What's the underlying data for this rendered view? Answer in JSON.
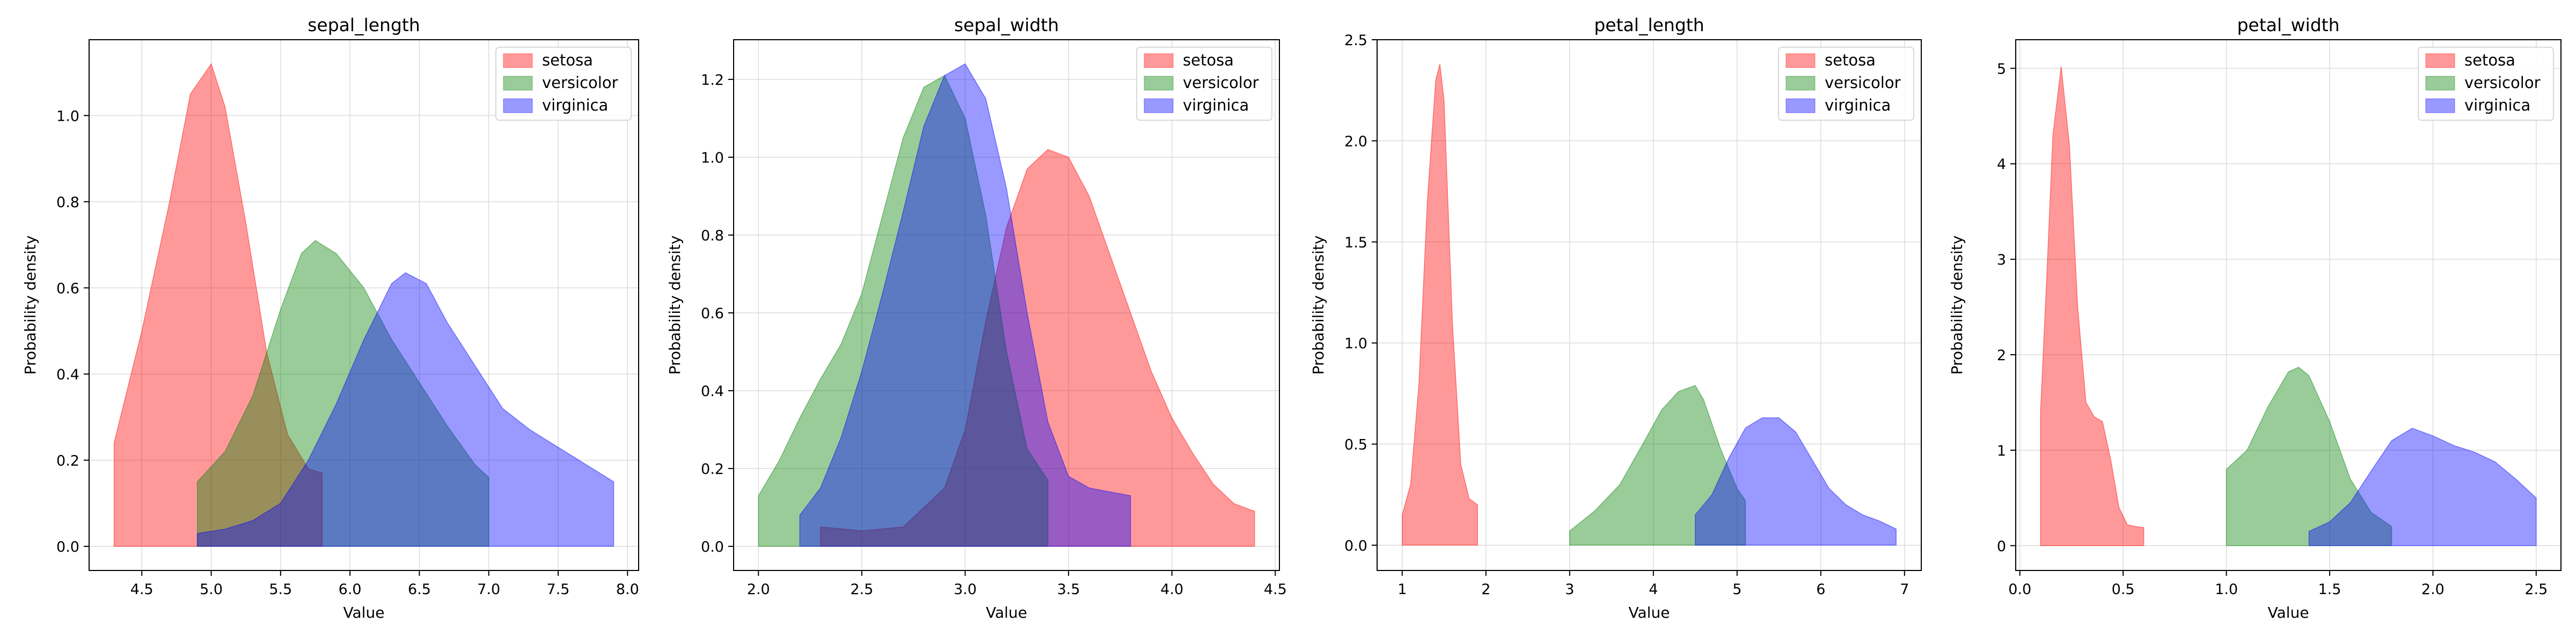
{
  "chart_data": [
    {
      "type": "area",
      "title": "sepal_length",
      "xlabel": "Value",
      "ylabel": "Probability density",
      "xlim": [
        4.12,
        8.08
      ],
      "ylim": [
        -0.056,
        1.176
      ],
      "xticks": [
        "4.5",
        "5.0",
        "5.5",
        "6.0",
        "6.5",
        "7.0",
        "7.5",
        "8.0"
      ],
      "yticks": [
        "0.0",
        "0.2",
        "0.4",
        "0.6",
        "0.8",
        "1.0"
      ],
      "grid": true,
      "legend": "upper-right",
      "series": [
        {
          "name": "setosa",
          "color": "#ff0000",
          "x": [
            4.3,
            4.5,
            4.7,
            4.85,
            5.0,
            5.1,
            5.25,
            5.4,
            5.55,
            5.7,
            5.8
          ],
          "y": [
            0.24,
            0.5,
            0.8,
            1.05,
            1.12,
            1.02,
            0.75,
            0.45,
            0.26,
            0.18,
            0.17
          ]
        },
        {
          "name": "versicolor",
          "color": "#008000",
          "x": [
            4.9,
            5.1,
            5.3,
            5.5,
            5.65,
            5.75,
            5.9,
            6.1,
            6.3,
            6.5,
            6.7,
            6.9,
            7.0
          ],
          "y": [
            0.15,
            0.22,
            0.35,
            0.55,
            0.68,
            0.71,
            0.68,
            0.6,
            0.48,
            0.38,
            0.28,
            0.19,
            0.16
          ]
        },
        {
          "name": "virginica",
          "color": "#0000ff",
          "x": [
            4.9,
            5.1,
            5.3,
            5.5,
            5.7,
            5.9,
            6.1,
            6.3,
            6.4,
            6.55,
            6.7,
            6.9,
            7.1,
            7.3,
            7.5,
            7.7,
            7.9
          ],
          "y": [
            0.03,
            0.04,
            0.06,
            0.1,
            0.2,
            0.33,
            0.48,
            0.61,
            0.635,
            0.61,
            0.52,
            0.42,
            0.32,
            0.27,
            0.23,
            0.19,
            0.15
          ]
        }
      ]
    },
    {
      "type": "area",
      "title": "sepal_width",
      "xlabel": "Value",
      "ylabel": "Probability density",
      "xlim": [
        1.88,
        4.52
      ],
      "ylim": [
        -0.062,
        1.302
      ],
      "xticks": [
        "2.0",
        "2.5",
        "3.0",
        "3.5",
        "4.0",
        "4.5"
      ],
      "yticks": [
        "0.0",
        "0.2",
        "0.4",
        "0.6",
        "0.8",
        "1.0",
        "1.2"
      ],
      "grid": true,
      "legend": "upper-right",
      "series": [
        {
          "name": "setosa",
          "color": "#ff0000",
          "x": [
            2.3,
            2.5,
            2.7,
            2.9,
            3.0,
            3.1,
            3.2,
            3.3,
            3.4,
            3.5,
            3.6,
            3.7,
            3.8,
            3.9,
            4.0,
            4.1,
            4.2,
            4.3,
            4.4
          ],
          "y": [
            0.05,
            0.04,
            0.05,
            0.15,
            0.3,
            0.58,
            0.82,
            0.97,
            1.02,
            1.0,
            0.9,
            0.75,
            0.6,
            0.45,
            0.33,
            0.24,
            0.16,
            0.11,
            0.09
          ]
        },
        {
          "name": "versicolor",
          "color": "#008000",
          "x": [
            2.0,
            2.1,
            2.2,
            2.3,
            2.4,
            2.5,
            2.6,
            2.7,
            2.8,
            2.9,
            3.0,
            3.1,
            3.2,
            3.3,
            3.4
          ],
          "y": [
            0.13,
            0.22,
            0.33,
            0.43,
            0.52,
            0.65,
            0.85,
            1.05,
            1.18,
            1.21,
            1.1,
            0.85,
            0.5,
            0.25,
            0.17
          ]
        },
        {
          "name": "virginica",
          "color": "#0000ff",
          "x": [
            2.2,
            2.3,
            2.4,
            2.5,
            2.6,
            2.7,
            2.8,
            2.9,
            3.0,
            3.1,
            3.2,
            3.3,
            3.4,
            3.5,
            3.6,
            3.7,
            3.8
          ],
          "y": [
            0.08,
            0.15,
            0.28,
            0.45,
            0.65,
            0.86,
            1.08,
            1.21,
            1.24,
            1.15,
            0.92,
            0.6,
            0.32,
            0.18,
            0.15,
            0.14,
            0.13
          ]
        }
      ]
    },
    {
      "type": "area",
      "title": "petal_length",
      "xlabel": "Value",
      "ylabel": "Probability density",
      "xlim": [
        0.7,
        7.2
      ],
      "ylim": [
        -0.125,
        2.5
      ],
      "xticks": [
        "1",
        "2",
        "3",
        "4",
        "5",
        "6",
        "7"
      ],
      "yticks": [
        "0.0",
        "0.5",
        "1.0",
        "1.5",
        "2.0",
        "2.5"
      ],
      "grid": true,
      "legend": "upper-right",
      "series": [
        {
          "name": "setosa",
          "color": "#ff0000",
          "x": [
            1.0,
            1.1,
            1.2,
            1.3,
            1.4,
            1.45,
            1.5,
            1.6,
            1.7,
            1.8,
            1.9
          ],
          "y": [
            0.15,
            0.3,
            0.8,
            1.7,
            2.3,
            2.38,
            2.2,
            1.1,
            0.4,
            0.23,
            0.2
          ]
        },
        {
          "name": "versicolor",
          "color": "#008000",
          "x": [
            3.0,
            3.3,
            3.6,
            3.9,
            4.1,
            4.3,
            4.5,
            4.6,
            4.8,
            5.0,
            5.1
          ],
          "y": [
            0.07,
            0.17,
            0.3,
            0.52,
            0.67,
            0.76,
            0.79,
            0.72,
            0.48,
            0.28,
            0.22
          ]
        },
        {
          "name": "virginica",
          "color": "#0000ff",
          "x": [
            4.5,
            4.7,
            4.9,
            5.1,
            5.3,
            5.5,
            5.7,
            5.9,
            6.1,
            6.3,
            6.5,
            6.7,
            6.9
          ],
          "y": [
            0.15,
            0.25,
            0.43,
            0.58,
            0.63,
            0.63,
            0.56,
            0.42,
            0.28,
            0.2,
            0.15,
            0.12,
            0.08
          ]
        }
      ]
    },
    {
      "type": "area",
      "title": "petal_width",
      "xlabel": "Value",
      "ylabel": "Probability density",
      "xlim": [
        -0.02,
        2.62
      ],
      "ylim": [
        -0.26,
        5.3
      ],
      "xticks": [
        "0.0",
        "0.5",
        "1.0",
        "1.5",
        "2.0",
        "2.5"
      ],
      "yticks": [
        "0",
        "1",
        "2",
        "3",
        "4",
        "5"
      ],
      "grid": true,
      "legend": "upper-right",
      "series": [
        {
          "name": "setosa",
          "color": "#ff0000",
          "x": [
            0.1,
            0.13,
            0.16,
            0.2,
            0.24,
            0.28,
            0.32,
            0.36,
            0.4,
            0.44,
            0.48,
            0.52,
            0.56,
            0.6
          ],
          "y": [
            1.4,
            2.8,
            4.3,
            5.02,
            4.2,
            2.5,
            1.5,
            1.35,
            1.3,
            0.9,
            0.4,
            0.22,
            0.2,
            0.19
          ]
        },
        {
          "name": "versicolor",
          "color": "#008000",
          "x": [
            1.0,
            1.05,
            1.1,
            1.2,
            1.3,
            1.35,
            1.4,
            1.5,
            1.6,
            1.7,
            1.8
          ],
          "y": [
            0.8,
            0.9,
            1.0,
            1.45,
            1.82,
            1.87,
            1.78,
            1.3,
            0.7,
            0.35,
            0.2
          ]
        },
        {
          "name": "virginica",
          "color": "#0000ff",
          "x": [
            1.4,
            1.5,
            1.6,
            1.7,
            1.8,
            1.9,
            2.0,
            2.1,
            2.2,
            2.3,
            2.4,
            2.5
          ],
          "y": [
            0.15,
            0.25,
            0.45,
            0.78,
            1.1,
            1.23,
            1.15,
            1.05,
            0.98,
            0.88,
            0.7,
            0.5
          ]
        }
      ]
    }
  ]
}
